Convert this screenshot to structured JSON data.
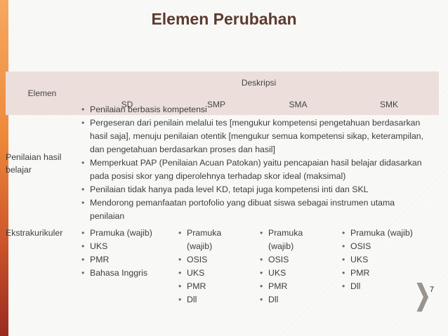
{
  "title": "Elemen Perubahan",
  "header": {
    "elemen": "Elemen",
    "deskripsi": "Deskripsi",
    "levels": [
      "SD",
      "SMP",
      "SMA",
      "SMK"
    ]
  },
  "rows": [
    {
      "elemen": "Penilaian hasil belajar",
      "items": [
        "Penilaian berbasis kompetensi",
        "Pergeseran dari penilain melalui tes [mengukur kompetensi pengetahuan berdasarkan hasil saja], menuju penilaian otentik [mengukur semua kompetensi sikap, keterampilan, dan pengetahuan berdasarkan proses dan hasil]",
        "Memperkuat PAP (Penilaian Acuan Patokan) yaitu pencapaian hasil belajar didasarkan pada posisi skor yang diperolehnya terhadap skor ideal (maksimal)",
        "Penilaian tidak hanya pada level KD, tetapi juga kompetensi inti dan SKL",
        "Mendorong pemanfaatan portofolio yang dibuat siswa sebagai instrumen utama penilaian"
      ]
    },
    {
      "elemen": "Ekstrakurikuler",
      "sd": [
        "Pramuka (wajib)",
        "UKS",
        "PMR",
        "Bahasa Inggris"
      ],
      "smp": [
        "Pramuka (wajib)",
        "OSIS",
        "UKS",
        "PMR",
        "Dll"
      ],
      "sma": [
        "Pramuka (wajib)",
        "OSIS",
        "UKS",
        "PMR",
        "Dll"
      ],
      "smk": [
        "Pramuka (wajib)",
        "OSIS",
        "UKS",
        "PMR",
        "Dll"
      ]
    }
  ],
  "page_number": "7",
  "colors": {
    "title": "#5c3b2e",
    "header_bg": "#ecdfdb",
    "side_bar": "#ee8a3a"
  }
}
